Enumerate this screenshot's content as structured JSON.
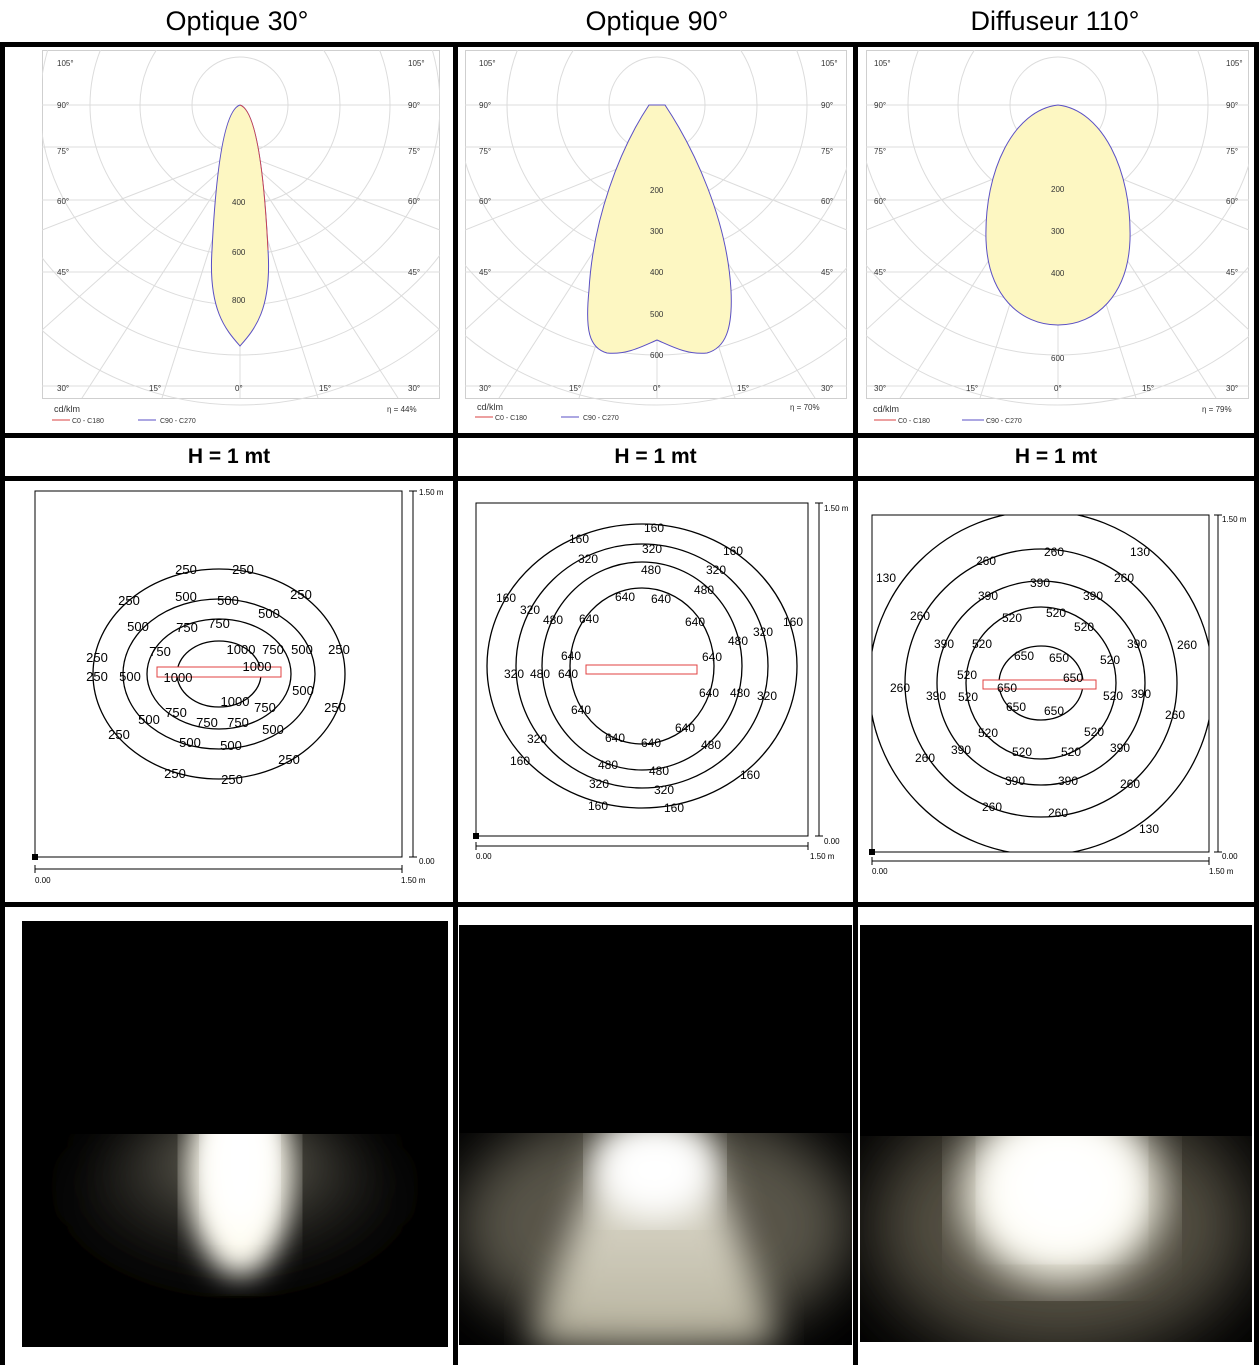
{
  "columns": [
    {
      "title": "Optique 30°",
      "height_label": "H = 1 mt",
      "polar": {
        "angle_labels_left": [
          "105°",
          "90°",
          "75°",
          "60°",
          "45°",
          "30°"
        ],
        "angle_labels_right": [
          "105°",
          "90°",
          "75°",
          "60°",
          "45°",
          "30°"
        ],
        "bottom_labels": [
          "15°",
          "0°",
          "15°"
        ],
        "radial_labels": [
          "400",
          "600",
          "800"
        ],
        "unit": "cd/klm",
        "efficiency": "η = 44%",
        "legend": [
          "C0 - C180",
          "C90 - C270"
        ]
      },
      "isolux": {
        "labels": [
          "250",
          "500",
          "750",
          "1000"
        ],
        "axis_y_top": "1.50 m",
        "axis_y_bottom": "0.00",
        "axis_x_left": "0.00",
        "axis_x_right": "1.50 m"
      }
    },
    {
      "title": "Optique 90°",
      "height_label": "H = 1 mt",
      "polar": {
        "angle_labels_left": [
          "105°",
          "90°",
          "75°",
          "60°",
          "45°",
          "30°"
        ],
        "angle_labels_right": [
          "105°",
          "90°",
          "75°",
          "60°",
          "45°",
          "30°"
        ],
        "bottom_labels": [
          "15°",
          "0°",
          "15°"
        ],
        "radial_labels": [
          "200",
          "300",
          "400",
          "500",
          "600"
        ],
        "unit": "cd/klm",
        "efficiency": "η = 70%",
        "legend": [
          "C0 - C180",
          "C90 - C270"
        ]
      },
      "isolux": {
        "labels": [
          "160",
          "320",
          "480",
          "640"
        ],
        "axis_y_top": "1.50 m",
        "axis_y_bottom": "0.00",
        "axis_x_left": "0.00",
        "axis_x_right": "1.50 m"
      }
    },
    {
      "title": "Diffuseur 110°",
      "height_label": "H = 1 mt",
      "polar": {
        "angle_labels_left": [
          "105°",
          "90°",
          "75°",
          "60°",
          "45°",
          "30°"
        ],
        "angle_labels_right": [
          "105°",
          "90°",
          "75°",
          "60°",
          "45°",
          "30°"
        ],
        "bottom_labels": [
          "15°",
          "0°",
          "15°"
        ],
        "radial_labels": [
          "200",
          "300",
          "400",
          "600"
        ],
        "unit": "cd/klm",
        "efficiency": "η = 79%",
        "legend": [
          "C0 - C180",
          "C90 - C270"
        ]
      },
      "isolux": {
        "labels": [
          "130",
          "260",
          "390",
          "520",
          "650"
        ],
        "axis_y_top": "1.50 m",
        "axis_y_bottom": "0.00",
        "axis_x_left": "0.00",
        "axis_x_right": "1.50 m"
      }
    }
  ],
  "colors": {
    "beam_fill": "#fdf7c2",
    "c0_line": "#d94040",
    "c90_line": "#5a4fc4",
    "grid": "#d8d8d8",
    "luminaire_outline": "#e04040"
  }
}
